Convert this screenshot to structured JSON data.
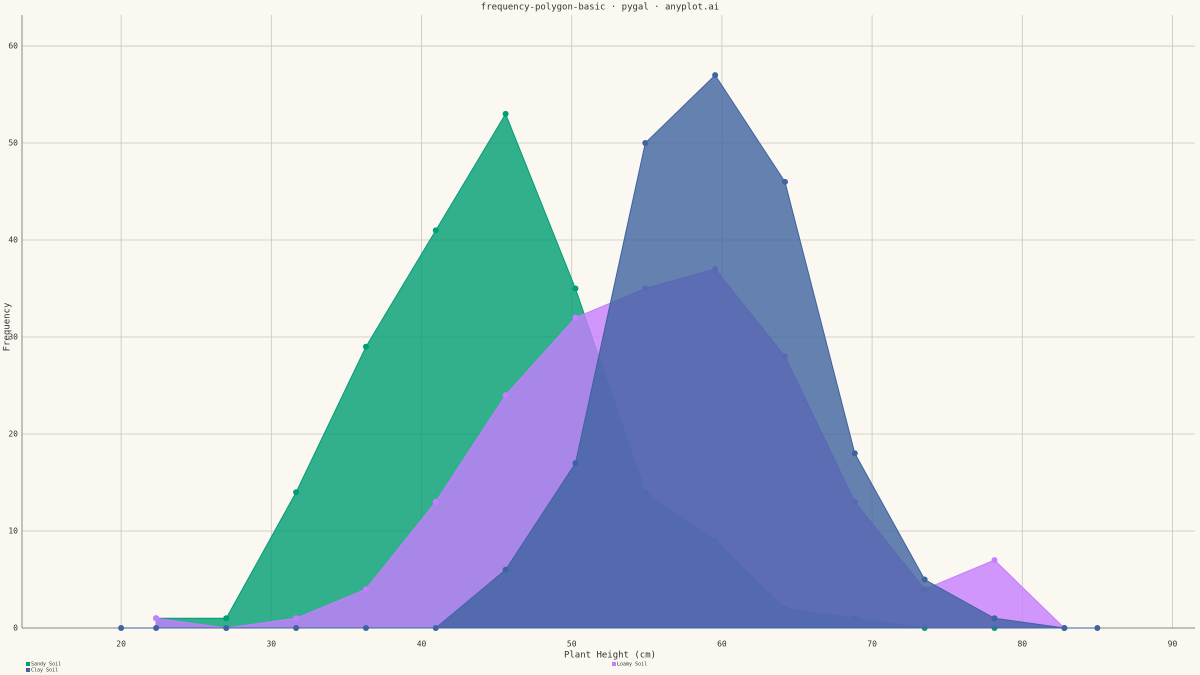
{
  "chart_data": {
    "type": "area",
    "title": "frequency-polygon-basic · pygal · anyplot.ai",
    "x_label": "Plant Height (cm)",
    "y_label": "Frequency",
    "x": [
      20,
      22.33,
      27.0,
      31.65,
      36.3,
      40.95,
      45.6,
      50.25,
      54.9,
      59.55,
      64.2,
      68.85,
      73.5,
      78.15,
      82.8,
      85.0
    ],
    "series": [
      {
        "name": "Sandy Soil",
        "color": "#009e73",
        "values": [
          null,
          1,
          1,
          14,
          29,
          41,
          53,
          35,
          14,
          9,
          2,
          1,
          0,
          0,
          0,
          null
        ]
      },
      {
        "name": "Loamy Soil",
        "color": "#c77dff",
        "values": [
          null,
          1,
          0,
          1,
          4,
          13,
          24,
          32,
          35,
          37,
          28,
          13,
          4,
          7,
          0,
          null
        ]
      },
      {
        "name": "Clay Soil",
        "color": "#3f63a0",
        "values": [
          0,
          0,
          0,
          0,
          0,
          0,
          6,
          17,
          50,
          57,
          46,
          18,
          5,
          1,
          0,
          0
        ]
      }
    ],
    "xlim": [
      13.4,
      91.5
    ],
    "ylim": [
      0,
      63.2
    ],
    "xticks": [
      20,
      30,
      40,
      50,
      60,
      70,
      80,
      90
    ],
    "yticks": [
      0,
      10,
      20,
      30,
      40,
      50,
      60
    ],
    "grid": true,
    "legend": "bottom"
  }
}
